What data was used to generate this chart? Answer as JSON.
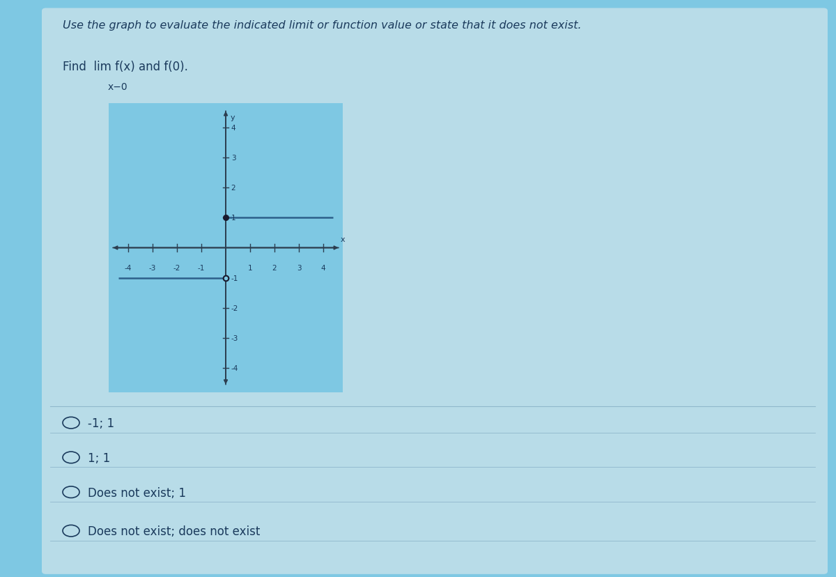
{
  "bg_color": "#7ec8e3",
  "panel_color": "#a8d8ea",
  "title_line1": "Use the graph to evaluate the indicated limit or function value or state that it does not exist.",
  "choices": [
    "-1; 1",
    "1; 1",
    "Does not exist; 1",
    "Does not exist; does not exist"
  ],
  "xlim": [
    -4.8,
    4.8
  ],
  "ylim": [
    -4.8,
    4.8
  ],
  "xticks": [
    -4,
    -3,
    -2,
    -1,
    1,
    2,
    3,
    4
  ],
  "yticks": [
    -4,
    -3,
    -2,
    -1,
    1,
    2,
    3,
    4
  ],
  "line1_x": [
    0,
    4.4
  ],
  "line1_y": [
    1,
    1
  ],
  "line2_x": [
    -4.4,
    0
  ],
  "line2_y": [
    -1,
    -1
  ],
  "filled_dot": [
    0,
    1
  ],
  "open_dot": [
    0,
    -1
  ],
  "axis_color": "#2c3e50",
  "line_color": "#2c5f8a",
  "dot_color": "#1a1a2e",
  "text_color": "#1a3a5c",
  "separator_color": "#90b8cc",
  "graph_bg": "#7ec8e3"
}
